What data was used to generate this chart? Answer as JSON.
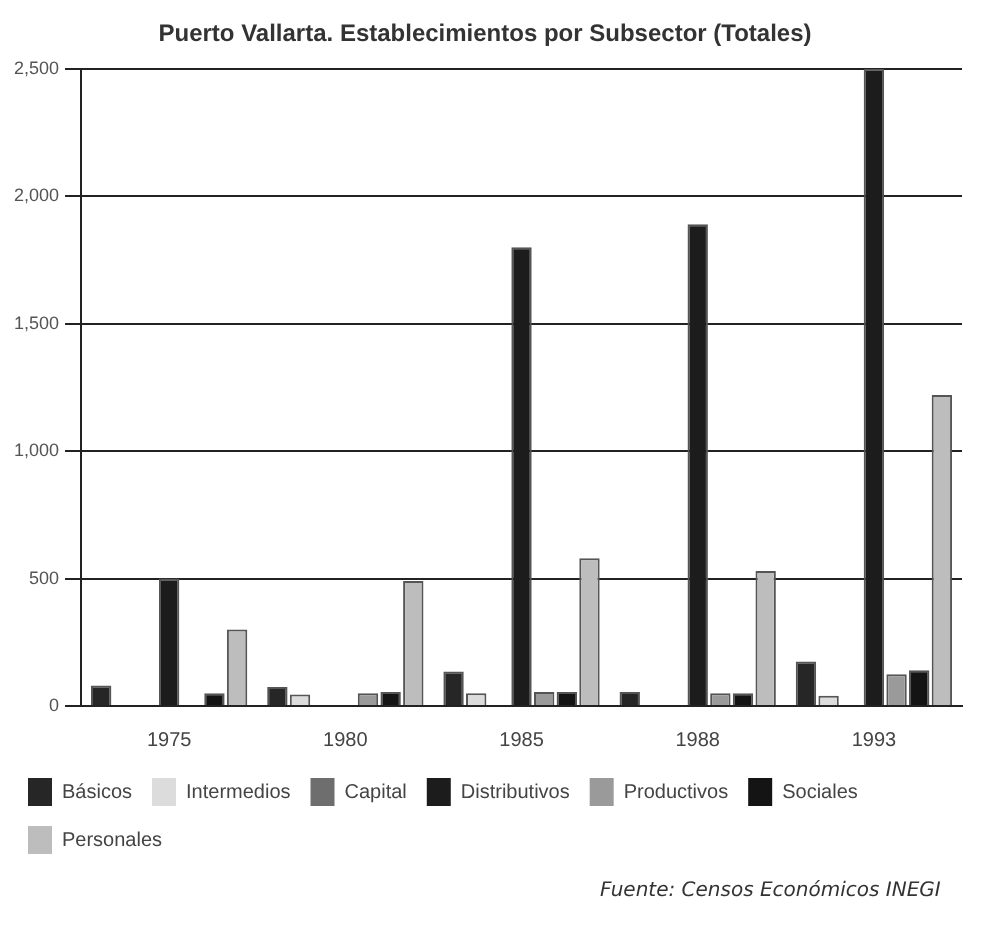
{
  "chart_data": {
    "type": "bar",
    "title": "Puerto Vallarta. Establecimientos por Subsector (Totales)",
    "categories": [
      "1975",
      "1980",
      "1985",
      "1988",
      "1993"
    ],
    "series": [
      {
        "name": "Básicos",
        "color": "#262626",
        "values": [
          80,
          75,
          135,
          55,
          175
        ]
      },
      {
        "name": "Intermedios",
        "color": "#dcdcdc",
        "values": [
          null,
          45,
          50,
          null,
          40
        ]
      },
      {
        "name": "Capital",
        "color": "#6e6e6e",
        "values": [
          null,
          null,
          null,
          null,
          null
        ]
      },
      {
        "name": "Distributivos",
        "color": "#1c1c1c",
        "values": [
          500,
          null,
          1800,
          1890,
          2500
        ]
      },
      {
        "name": "Productivos",
        "color": "#9a9a9a",
        "values": [
          null,
          50,
          55,
          50,
          125
        ]
      },
      {
        "name": "Sociales",
        "color": "#141414",
        "values": [
          50,
          55,
          55,
          50,
          140
        ]
      },
      {
        "name": "Personales",
        "color": "#bdbdbd",
        "values": [
          300,
          490,
          580,
          530,
          1220
        ]
      }
    ],
    "ylim": [
      0,
      2500
    ],
    "yticks": [
      0,
      500,
      {
        "value": 1000,
        "label": "1,000"
      },
      {
        "value": 1500,
        "label": "1,500"
      },
      {
        "value": 2000,
        "label": "2,000"
      },
      {
        "value": 2500,
        "label": "2,500"
      }
    ],
    "grid": "y",
    "legend": "bottom",
    "annotations": [
      "Fuente: Censos Económicos INEGI"
    ]
  }
}
